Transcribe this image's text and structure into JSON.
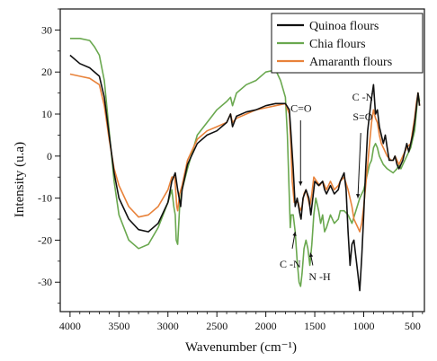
{
  "chart_data": {
    "type": "line",
    "xlabel": "Wavenumber (cm⁻¹)",
    "ylabel": "Intensity (u.a)",
    "xlim": [
      4100,
      380
    ],
    "ylim": [
      -37,
      35
    ],
    "x_ticks": [
      4000,
      3500,
      3000,
      2500,
      2000,
      1500,
      1000,
      500
    ],
    "y_ticks": [
      30,
      20,
      10,
      0,
      -10,
      -20,
      -30
    ],
    "x_reversed": true,
    "grid": false,
    "legend_position": "top-right",
    "series": [
      {
        "name": "Quinoa flours",
        "color": "#111111",
        "points": [
          [
            4000,
            24
          ],
          [
            3900,
            22
          ],
          [
            3800,
            21
          ],
          [
            3700,
            19
          ],
          [
            3650,
            14
          ],
          [
            3600,
            5
          ],
          [
            3550,
            -4
          ],
          [
            3500,
            -10
          ],
          [
            3400,
            -15
          ],
          [
            3300,
            -17.5
          ],
          [
            3200,
            -18
          ],
          [
            3100,
            -16
          ],
          [
            3000,
            -11
          ],
          [
            2960,
            -6
          ],
          [
            2925,
            -4
          ],
          [
            2900,
            -8
          ],
          [
            2870,
            -12
          ],
          [
            2855,
            -8
          ],
          [
            2800,
            -2
          ],
          [
            2700,
            3
          ],
          [
            2600,
            5
          ],
          [
            2500,
            6
          ],
          [
            2400,
            8
          ],
          [
            2360,
            10
          ],
          [
            2340,
            7
          ],
          [
            2300,
            9.5
          ],
          [
            2200,
            10.5
          ],
          [
            2100,
            11
          ],
          [
            2000,
            12
          ],
          [
            1900,
            12.5
          ],
          [
            1800,
            12.5
          ],
          [
            1760,
            11
          ],
          [
            1745,
            6
          ],
          [
            1720,
            -3
          ],
          [
            1700,
            -12
          ],
          [
            1680,
            -10
          ],
          [
            1650,
            -14
          ],
          [
            1640,
            -15
          ],
          [
            1620,
            -10
          ],
          [
            1590,
            -8
          ],
          [
            1560,
            -10
          ],
          [
            1540,
            -14
          ],
          [
            1520,
            -10
          ],
          [
            1500,
            -6
          ],
          [
            1460,
            -7
          ],
          [
            1420,
            -6
          ],
          [
            1400,
            -8
          ],
          [
            1380,
            -9
          ],
          [
            1340,
            -7
          ],
          [
            1300,
            -9
          ],
          [
            1260,
            -8
          ],
          [
            1240,
            -6
          ],
          [
            1200,
            -4
          ],
          [
            1180,
            -8
          ],
          [
            1160,
            -18
          ],
          [
            1140,
            -26
          ],
          [
            1120,
            -21
          ],
          [
            1100,
            -20
          ],
          [
            1080,
            -24
          ],
          [
            1060,
            -28
          ],
          [
            1040,
            -32
          ],
          [
            1020,
            -24
          ],
          [
            1000,
            -14
          ],
          [
            980,
            -3
          ],
          [
            960,
            6
          ],
          [
            940,
            10
          ],
          [
            925,
            13
          ],
          [
            900,
            17
          ],
          [
            880,
            10
          ],
          [
            860,
            11
          ],
          [
            840,
            7
          ],
          [
            820,
            5
          ],
          [
            800,
            3
          ],
          [
            780,
            5
          ],
          [
            760,
            2
          ],
          [
            740,
            -1
          ],
          [
            720,
            -1
          ],
          [
            700,
            -1
          ],
          [
            680,
            0
          ],
          [
            660,
            -2
          ],
          [
            640,
            -3
          ],
          [
            620,
            -2
          ],
          [
            600,
            -1
          ],
          [
            580,
            1
          ],
          [
            560,
            3
          ],
          [
            540,
            1
          ],
          [
            520,
            3
          ],
          [
            500,
            5
          ],
          [
            480,
            8
          ],
          [
            460,
            12
          ],
          [
            445,
            15
          ],
          [
            430,
            12
          ]
        ]
      },
      {
        "name": "Chia flours",
        "color": "#6aa84f",
        "points": [
          [
            4000,
            28
          ],
          [
            3900,
            28
          ],
          [
            3800,
            27.5
          ],
          [
            3750,
            26
          ],
          [
            3700,
            24
          ],
          [
            3650,
            18
          ],
          [
            3600,
            6
          ],
          [
            3550,
            -6
          ],
          [
            3500,
            -14
          ],
          [
            3400,
            -20
          ],
          [
            3300,
            -22
          ],
          [
            3200,
            -21
          ],
          [
            3100,
            -17
          ],
          [
            3000,
            -11
          ],
          [
            2960,
            -8
          ],
          [
            2940,
            -12
          ],
          [
            2925,
            -14
          ],
          [
            2915,
            -20
          ],
          [
            2900,
            -21
          ],
          [
            2880,
            -12
          ],
          [
            2855,
            -8
          ],
          [
            2800,
            -3
          ],
          [
            2700,
            5
          ],
          [
            2600,
            8
          ],
          [
            2500,
            11
          ],
          [
            2400,
            13
          ],
          [
            2360,
            14
          ],
          [
            2340,
            12
          ],
          [
            2300,
            15
          ],
          [
            2200,
            17
          ],
          [
            2100,
            18
          ],
          [
            2000,
            20
          ],
          [
            1900,
            20.5
          ],
          [
            1850,
            18
          ],
          [
            1800,
            14
          ],
          [
            1780,
            5
          ],
          [
            1760,
            -10
          ],
          [
            1750,
            -17
          ],
          [
            1740,
            -14
          ],
          [
            1720,
            -14
          ],
          [
            1700,
            -18
          ],
          [
            1680,
            -25
          ],
          [
            1660,
            -30
          ],
          [
            1645,
            -31
          ],
          [
            1630,
            -28
          ],
          [
            1610,
            -22
          ],
          [
            1590,
            -20
          ],
          [
            1570,
            -22
          ],
          [
            1550,
            -26
          ],
          [
            1530,
            -21
          ],
          [
            1510,
            -14
          ],
          [
            1490,
            -10
          ],
          [
            1460,
            -13
          ],
          [
            1440,
            -16
          ],
          [
            1420,
            -14
          ],
          [
            1400,
            -18
          ],
          [
            1380,
            -17
          ],
          [
            1340,
            -14
          ],
          [
            1300,
            -16
          ],
          [
            1260,
            -15
          ],
          [
            1240,
            -13
          ],
          [
            1200,
            -13
          ],
          [
            1160,
            -14
          ],
          [
            1120,
            -16
          ],
          [
            1080,
            -13
          ],
          [
            1040,
            -10
          ],
          [
            1000,
            -8
          ],
          [
            970,
            -5
          ],
          [
            940,
            -2
          ],
          [
            920,
            -1
          ],
          [
            900,
            2
          ],
          [
            880,
            3
          ],
          [
            860,
            2
          ],
          [
            840,
            0
          ],
          [
            820,
            -1
          ],
          [
            800,
            -2
          ],
          [
            760,
            -3
          ],
          [
            700,
            -4
          ],
          [
            660,
            -3
          ],
          [
            640,
            -2
          ],
          [
            620,
            -3
          ],
          [
            600,
            -2
          ],
          [
            560,
            0
          ],
          [
            520,
            2
          ],
          [
            500,
            4
          ],
          [
            480,
            6
          ],
          [
            460,
            11
          ],
          [
            445,
            15
          ],
          [
            430,
            13
          ]
        ]
      },
      {
        "name": "Amaranth flours",
        "color": "#e8823a",
        "points": [
          [
            4000,
            19.5
          ],
          [
            3900,
            19
          ],
          [
            3800,
            18.5
          ],
          [
            3700,
            17
          ],
          [
            3650,
            12
          ],
          [
            3600,
            4
          ],
          [
            3550,
            -3
          ],
          [
            3500,
            -7
          ],
          [
            3400,
            -12
          ],
          [
            3300,
            -14.5
          ],
          [
            3200,
            -14
          ],
          [
            3100,
            -12
          ],
          [
            3000,
            -8
          ],
          [
            2960,
            -5
          ],
          [
            2930,
            -5
          ],
          [
            2910,
            -12
          ],
          [
            2900,
            -13
          ],
          [
            2880,
            -9
          ],
          [
            2855,
            -7
          ],
          [
            2800,
            -1
          ],
          [
            2700,
            4
          ],
          [
            2600,
            6
          ],
          [
            2500,
            7
          ],
          [
            2400,
            8
          ],
          [
            2360,
            10
          ],
          [
            2340,
            8
          ],
          [
            2300,
            9
          ],
          [
            2200,
            10
          ],
          [
            2100,
            11
          ],
          [
            2000,
            11.5
          ],
          [
            1900,
            12
          ],
          [
            1800,
            12.5
          ],
          [
            1760,
            10
          ],
          [
            1745,
            3
          ],
          [
            1730,
            -6
          ],
          [
            1710,
            -11
          ],
          [
            1690,
            -11
          ],
          [
            1670,
            -11
          ],
          [
            1650,
            -13
          ],
          [
            1630,
            -12
          ],
          [
            1610,
            -9
          ],
          [
            1590,
            -8
          ],
          [
            1570,
            -10
          ],
          [
            1550,
            -12
          ],
          [
            1530,
            -9
          ],
          [
            1510,
            -5
          ],
          [
            1480,
            -6
          ],
          [
            1450,
            -7
          ],
          [
            1420,
            -6
          ],
          [
            1400,
            -7
          ],
          [
            1380,
            -8
          ],
          [
            1340,
            -6
          ],
          [
            1300,
            -8
          ],
          [
            1260,
            -7
          ],
          [
            1240,
            -6
          ],
          [
            1200,
            -5
          ],
          [
            1160,
            -8
          ],
          [
            1120,
            -12
          ],
          [
            1100,
            -15
          ],
          [
            1080,
            -16
          ],
          [
            1060,
            -17
          ],
          [
            1040,
            -18
          ],
          [
            1020,
            -16
          ],
          [
            1000,
            -12
          ],
          [
            980,
            -7
          ],
          [
            960,
            -2
          ],
          [
            940,
            3
          ],
          [
            920,
            8
          ],
          [
            900,
            11
          ],
          [
            880,
            9
          ],
          [
            860,
            8
          ],
          [
            840,
            5
          ],
          [
            820,
            3
          ],
          [
            800,
            2
          ],
          [
            760,
            0
          ],
          [
            720,
            -1
          ],
          [
            700,
            -1
          ],
          [
            680,
            0
          ],
          [
            660,
            -1
          ],
          [
            640,
            -2
          ],
          [
            620,
            -1
          ],
          [
            600,
            0
          ],
          [
            560,
            2
          ],
          [
            520,
            3
          ],
          [
            500,
            6
          ],
          [
            480,
            9
          ],
          [
            460,
            13
          ],
          [
            445,
            15
          ],
          [
            430,
            12
          ]
        ]
      }
    ],
    "annotations": [
      {
        "text": "C=O"
      },
      {
        "text": "C -N"
      },
      {
        "text": "S=O"
      },
      {
        "text": "C -N"
      },
      {
        "text": "N -H"
      }
    ]
  }
}
